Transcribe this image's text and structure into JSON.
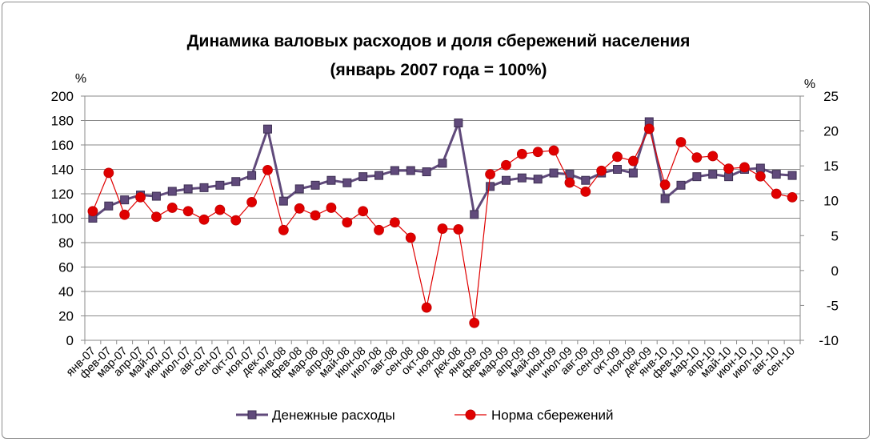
{
  "chart_data": {
    "type": "line",
    "title": [
      "Динамика валовых расходов и доля сбережений населения",
      "(январь 2007 года = 100%)"
    ],
    "left_axis": {
      "unit_label": "%",
      "ylim": [
        0,
        200
      ],
      "ticks": [
        0,
        20,
        40,
        60,
        80,
        100,
        120,
        140,
        160,
        180,
        200
      ]
    },
    "right_axis": {
      "unit_label": "%",
      "ylim": [
        -10,
        25
      ],
      "ticks": [
        -10,
        -5,
        0,
        5,
        10,
        15,
        20,
        25
      ]
    },
    "grid": "horizontal",
    "legend_position": "bottom",
    "categories": [
      "янв-07",
      "фев-07",
      "мар-07",
      "апр-07",
      "май-07",
      "июн-07",
      "июл-07",
      "авг-07",
      "сен-07",
      "окт-07",
      "ноя-07",
      "дек-07",
      "янв-08",
      "фев-08",
      "мар-08",
      "апр-08",
      "май-08",
      "июн-08",
      "июл-08",
      "авг-08",
      "сен-08",
      "окт-08",
      "ноя-08",
      "дек-08",
      "янв-09",
      "фев-09",
      "мар-09",
      "апр-09",
      "май-09",
      "июн-09",
      "июл-09",
      "авг-09",
      "сен-09",
      "окт-09",
      "ноя-09",
      "дек-09",
      "янв-10",
      "фев-10",
      "мар-10",
      "апр-10",
      "май-10",
      "июн-10",
      "июл-10",
      "авг-10",
      "сен-10"
    ],
    "series": [
      {
        "name": "Денежные расходы",
        "axis": "left",
        "color": "#604a7b",
        "marker": "square",
        "values": [
          100,
          110,
          115,
          119,
          118,
          122,
          124,
          125,
          127,
          130,
          135,
          173,
          114,
          124,
          127,
          131,
          129,
          134,
          135,
          139,
          139,
          138,
          145,
          178,
          103,
          126,
          131,
          133,
          132,
          137,
          136,
          131,
          137,
          140,
          137,
          179,
          116,
          127,
          134,
          136,
          134,
          140,
          141,
          136,
          135
        ]
      },
      {
        "name": "Норма сбережений",
        "axis": "right",
        "color": "#e00000",
        "marker": "circle",
        "values": [
          8.5,
          14,
          8,
          10.5,
          7.7,
          9,
          8.5,
          7.3,
          8.7,
          7.2,
          9.8,
          14.4,
          5.8,
          8.9,
          7.9,
          9.0,
          6.9,
          8.5,
          5.8,
          6.9,
          4.7,
          -5.3,
          6.0,
          5.9,
          -7.5,
          13.8,
          15.1,
          16.7,
          17.0,
          17.2,
          12.6,
          11.3,
          14.3,
          16.3,
          15.7,
          20.3,
          12.3,
          18.4,
          16.2,
          16.4,
          14.6,
          14.8,
          13.5,
          11.0,
          10.5
        ]
      }
    ]
  }
}
